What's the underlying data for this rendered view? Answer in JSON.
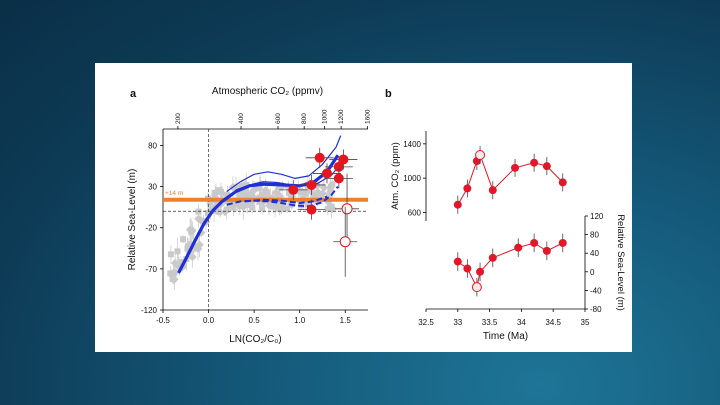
{
  "chart_data": [
    {
      "panel_label": "a",
      "type": "scatter",
      "xlabel": "LN(CO₂/C₀)",
      "ylabel": "Relative Sea-Level (m)",
      "top_axis_label": "Atmospheric CO₂ (ppmv)",
      "top_ticks": [
        "200",
        "400",
        "600",
        "800",
        "1000",
        "1200",
        "1600"
      ],
      "top_tick_values": [
        200,
        400,
        600,
        800,
        1000,
        1200,
        1600
      ],
      "x_ticks": [
        "-0.5",
        "0.0",
        "0.5",
        "1.0",
        "1.5"
      ],
      "y_ticks": [
        "80",
        "30",
        "-20",
        "-70",
        "-120"
      ],
      "xlim": [
        -0.5,
        1.75
      ],
      "ylim": [
        -120,
        100
      ],
      "reference_line": {
        "label": "+14 m",
        "y": 14,
        "color": "#f07f2a"
      },
      "zero_lines": {
        "x": 0,
        "y": 0
      },
      "gray_cloud_color": "#c9c9c9",
      "curve_color": "#1f2ed6",
      "blue_curves": [
        {
          "style": "thick",
          "points": [
            [
              -0.33,
              -75
            ],
            [
              -0.25,
              -58
            ],
            [
              -0.15,
              -36
            ],
            [
              -0.05,
              -15
            ],
            [
              0.05,
              1
            ],
            [
              0.15,
              12
            ],
            [
              0.3,
              24
            ],
            [
              0.45,
              31
            ],
            [
              0.6,
              33
            ],
            [
              0.8,
              32
            ],
            [
              1.0,
              31
            ],
            [
              1.15,
              35
            ],
            [
              1.3,
              48
            ],
            [
              1.42,
              68
            ]
          ]
        },
        {
          "style": "thin",
          "points": [
            [
              0.2,
              24
            ],
            [
              0.35,
              36
            ],
            [
              0.5,
              45
            ],
            [
              0.65,
              48
            ],
            [
              0.8,
              45
            ],
            [
              0.95,
              40
            ],
            [
              1.1,
              43
            ],
            [
              1.25,
              57
            ],
            [
              1.4,
              78
            ],
            [
              1.45,
              92
            ]
          ]
        },
        {
          "style": "thin",
          "points": [
            [
              0.3,
              26
            ],
            [
              0.45,
              32
            ],
            [
              0.6,
              36
            ],
            [
              0.75,
              35
            ],
            [
              0.9,
              32
            ],
            [
              1.05,
              31
            ],
            [
              1.2,
              34
            ],
            [
              1.35,
              44
            ],
            [
              1.45,
              58
            ]
          ]
        },
        {
          "style": "dashed",
          "points": [
            [
              0.2,
              8
            ],
            [
              0.35,
              12
            ],
            [
              0.5,
              13
            ],
            [
              0.65,
              12
            ],
            [
              0.8,
              10
            ],
            [
              0.95,
              7
            ],
            [
              1.1,
              6
            ],
            [
              1.25,
              11
            ],
            [
              1.35,
              20
            ],
            [
              1.42,
              30
            ]
          ]
        },
        {
          "style": "dashed",
          "points": [
            [
              0.4,
              12
            ],
            [
              0.6,
              14
            ],
            [
              0.8,
              13
            ],
            [
              1.0,
              10
            ],
            [
              1.15,
              12
            ],
            [
              1.3,
              18
            ]
          ]
        }
      ],
      "red_points": [
        {
          "x": 0.93,
          "y": 26
        },
        {
          "x": 1.13,
          "y": 32
        },
        {
          "x": 1.22,
          "y": 65
        },
        {
          "x": 1.3,
          "y": 46
        },
        {
          "x": 1.43,
          "y": 54
        },
        {
          "x": 1.43,
          "y": 40
        },
        {
          "x": 1.48,
          "y": 63
        },
        {
          "x": 1.13,
          "y": 2
        }
      ],
      "open_points": [
        {
          "x": 1.52,
          "y": 3
        },
        {
          "x": 1.5,
          "y": -37
        }
      ]
    },
    {
      "panel_label": "b",
      "type": "line",
      "xlabel": "Time (Ma)",
      "x_ticks": [
        "32.5",
        "33",
        "33.5",
        "34",
        "34.5",
        "35"
      ],
      "xlim": [
        32.5,
        35
      ],
      "upper": {
        "ylabel": "Atm. CO₂ (ppm)",
        "y_ticks": [
          "1400",
          "1000",
          "600"
        ],
        "ylim": [
          500,
          1550
        ],
        "x": [
          33.0,
          33.15,
          33.3,
          33.35,
          33.55,
          33.9,
          34.2,
          34.4,
          34.65
        ],
        "y": [
          690,
          880,
          1200,
          1270,
          860,
          1120,
          1180,
          1140,
          950
        ],
        "open_index": 3
      },
      "lower": {
        "ylabel": "Relative Sea-Level (m)",
        "y_ticks": [
          "120",
          "80",
          "40",
          "0",
          "-40",
          "-80"
        ],
        "ylim": [
          -80,
          120
        ],
        "x": [
          33.0,
          33.15,
          33.3,
          33.35,
          33.55,
          33.95,
          34.2,
          34.4,
          34.65
        ],
        "y": [
          22,
          7,
          -33,
          0,
          30,
          52,
          62,
          45,
          62
        ],
        "open_index": 2
      },
      "color": "#e0192a"
    }
  ]
}
